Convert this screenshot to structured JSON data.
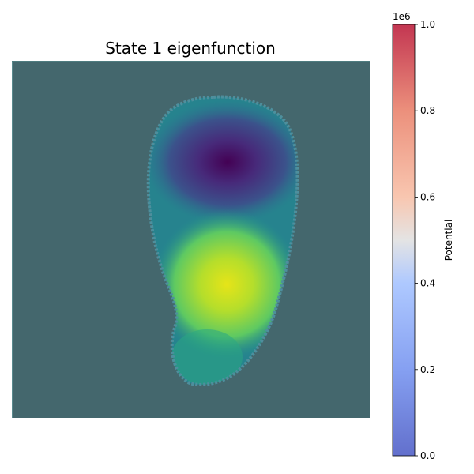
{
  "chart_data": {
    "type": "heatmap",
    "title": "State 1 eigenfunction",
    "xlabel": "",
    "ylabel": "",
    "axes_visible": false,
    "grid": false,
    "overlay": {
      "description": "potential map (coolwarm, semi-transparent) overlaid on eigenfunction image (viridis)",
      "outside_potential_value": 1000000,
      "inside_potential_value": 0
    },
    "eigenfunction": {
      "colormap": "viridis",
      "features": [
        {
          "name": "negative lobe",
          "level": "minimum",
          "approx_center": [
            0.6,
            0.29
          ]
        },
        {
          "name": "positive lobe",
          "level": "maximum",
          "approx_center": [
            0.6,
            0.65
          ]
        }
      ]
    },
    "colorbar": {
      "label": "Potential",
      "colormap": "coolwarm",
      "min": 0.0,
      "max": 1.0,
      "exponent_label": "1e6",
      "ticks": [
        "0.0",
        "0.2",
        "0.4",
        "0.6",
        "0.8",
        "1.0"
      ],
      "tick_values": [
        0.0,
        0.2,
        0.4,
        0.6,
        0.8,
        1.0
      ]
    }
  }
}
